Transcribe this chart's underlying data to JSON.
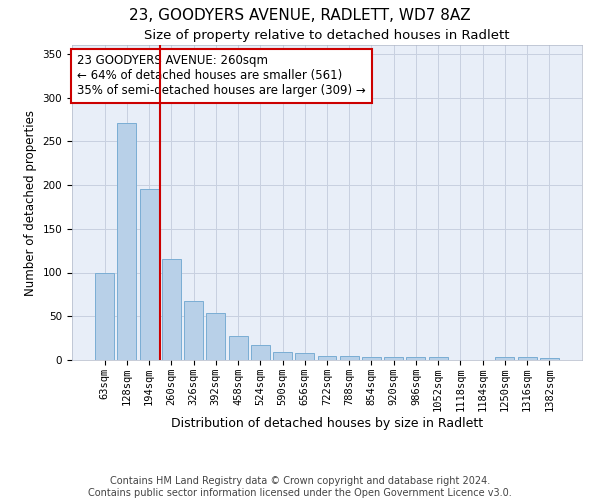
{
  "title": "23, GOODYERS AVENUE, RADLETT, WD7 8AZ",
  "subtitle": "Size of property relative to detached houses in Radlett",
  "xlabel": "Distribution of detached houses by size in Radlett",
  "ylabel": "Number of detached properties",
  "categories": [
    "63sqm",
    "128sqm",
    "194sqm",
    "260sqm",
    "326sqm",
    "392sqm",
    "458sqm",
    "524sqm",
    "590sqm",
    "656sqm",
    "722sqm",
    "788sqm",
    "854sqm",
    "920sqm",
    "986sqm",
    "1052sqm",
    "1118sqm",
    "1184sqm",
    "1250sqm",
    "1316sqm",
    "1382sqm"
  ],
  "values": [
    100,
    271,
    195,
    115,
    67,
    54,
    27,
    17,
    9,
    8,
    5,
    5,
    4,
    3,
    3,
    3,
    0,
    0,
    4,
    3,
    2
  ],
  "bar_color": "#b8d0e8",
  "bar_edge_color": "#7aadd4",
  "vline_color": "#cc0000",
  "annotation_text": "23 GOODYERS AVENUE: 260sqm\n← 64% of detached houses are smaller (561)\n35% of semi-detached houses are larger (309) →",
  "annotation_box_color": "#cc0000",
  "ylim": [
    0,
    360
  ],
  "yticks": [
    0,
    50,
    100,
    150,
    200,
    250,
    300,
    350
  ],
  "grid_color": "#c8d0e0",
  "background_color": "#e8eef8",
  "footer_text": "Contains HM Land Registry data © Crown copyright and database right 2024.\nContains public sector information licensed under the Open Government Licence v3.0.",
  "title_fontsize": 11,
  "subtitle_fontsize": 9.5,
  "xlabel_fontsize": 9,
  "ylabel_fontsize": 8.5,
  "tick_fontsize": 7.5,
  "annotation_fontsize": 8.5,
  "footer_fontsize": 7
}
